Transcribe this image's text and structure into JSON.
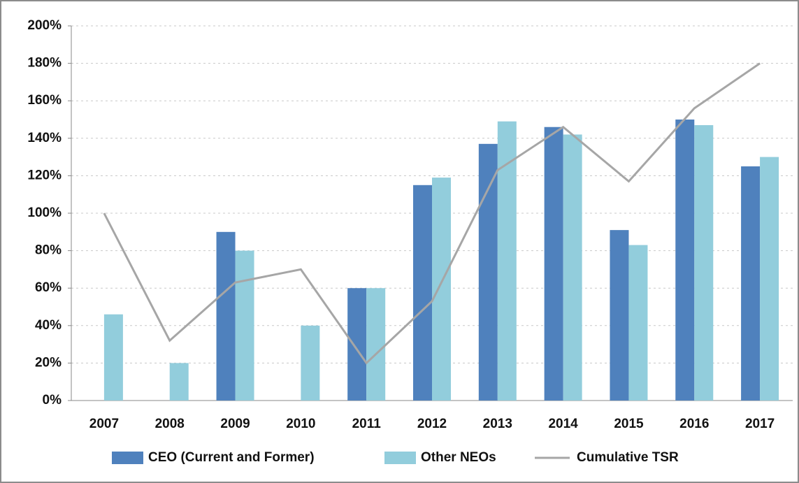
{
  "chart_data": {
    "type": "bar",
    "categories": [
      "2007",
      "2008",
      "2009",
      "2010",
      "2011",
      "2012",
      "2013",
      "2014",
      "2015",
      "2016",
      "2017"
    ],
    "series": [
      {
        "name": "CEO (Current and Former)",
        "type": "bar",
        "color": "#4f81bd",
        "values": [
          null,
          null,
          90,
          null,
          60,
          115,
          137,
          146,
          91,
          150,
          125
        ]
      },
      {
        "name": "Other NEOs",
        "type": "bar",
        "color": "#92cddc",
        "values": [
          46,
          20,
          80,
          40,
          60,
          119,
          149,
          142,
          83,
          147,
          130
        ]
      },
      {
        "name": "Cumulative TSR",
        "type": "line",
        "color": "#a6a6a6",
        "values": [
          100,
          32,
          63,
          70,
          20,
          53,
          123,
          146,
          117,
          156,
          180
        ]
      }
    ],
    "ylim": [
      0,
      200
    ],
    "yticks": [
      {
        "value": 0,
        "label": "0%"
      },
      {
        "value": 20,
        "label": "20%"
      },
      {
        "value": 40,
        "label": "40%"
      },
      {
        "value": 60,
        "label": "60%"
      },
      {
        "value": 80,
        "label": "80%"
      },
      {
        "value": 100,
        "label": "100%"
      },
      {
        "value": 120,
        "label": "120%"
      },
      {
        "value": 140,
        "label": "140%"
      },
      {
        "value": 160,
        "label": "160%"
      },
      {
        "value": 180,
        "label": "180%"
      },
      {
        "value": 200,
        "label": "200%"
      }
    ],
    "grid": true,
    "legend": "bottom"
  }
}
